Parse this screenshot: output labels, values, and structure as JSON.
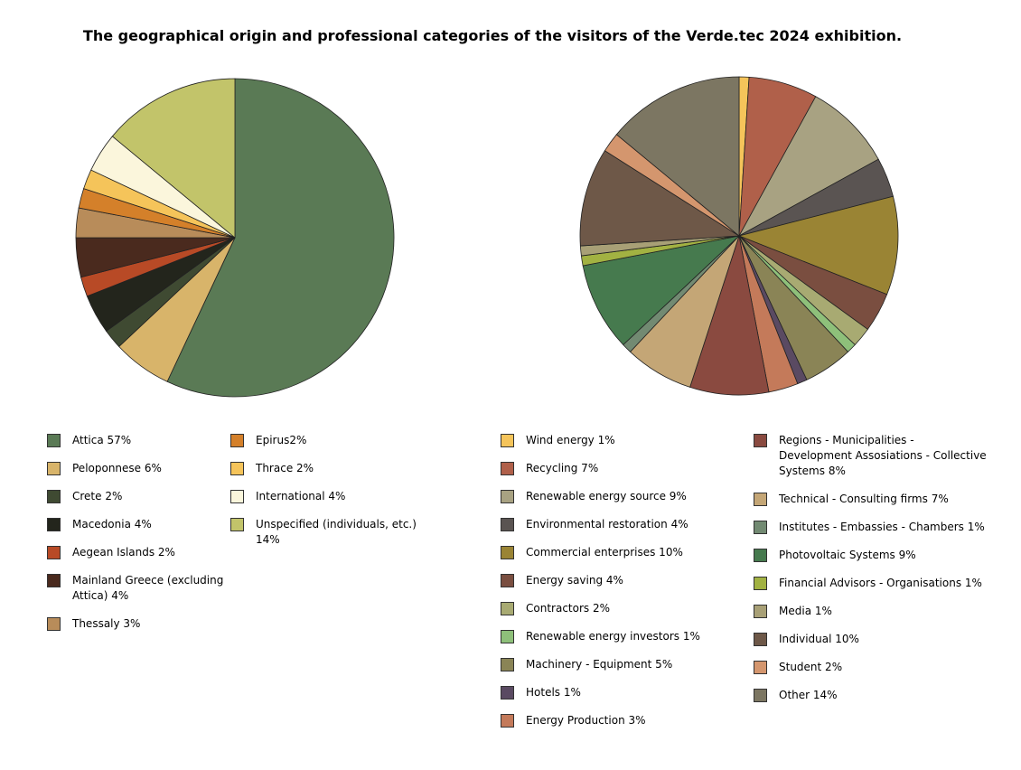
{
  "title": "The geographical origin and professional categories of the visitors of the Verde.tec 2024 exhibition.",
  "chart_data": [
    {
      "type": "pie",
      "categories": [
        "Attica 57%",
        "Peloponnese 6%",
        "Crete 2%",
        "Macedonia 4%",
        "Aegean Islands 2%",
        "Mainland Greece (excluding Attica) 4%",
        "Thessaly 3%",
        "Epirus2%",
        "Thrace 2%",
        "International 4%",
        "Unspecified (individuals, etc.) 14%"
      ],
      "values": [
        57,
        6,
        2,
        4,
        2,
        4,
        3,
        2,
        2,
        4,
        14
      ],
      "colors": [
        "#5a7a55",
        "#d8b46a",
        "#3f4a32",
        "#23251c",
        "#b84a26",
        "#4a2a1e",
        "#b88c5a",
        "#d4802a",
        "#f5c45a",
        "#fbf6dc",
        "#c2c46a"
      ]
    },
    {
      "type": "pie",
      "categories": [
        "Wind energy 1%",
        "Recycling 7%",
        "Renewable energy source 9%",
        "Environmental restoration 4%",
        "Commercial enterprises 10%",
        "Energy saving 4%",
        "Contractors 2%",
        "Renewable energy investors 1%",
        "Machinery - Equipment 5%",
        "Hotels 1%",
        "Energy Production 3%",
        "Regions - Municipalities - Development Assosiations - Collective Systems 8%",
        "Technical - Consulting firms 7%",
        "Institutes - Embassies - Chambers 1%",
        "Photovoltaic Systems 9%",
        "Financial Advisors - Organisations 1%",
        "Media 1%",
        "Individual 10%",
        "Student 2%",
        "Other 14%"
      ],
      "values": [
        1,
        7,
        9,
        4,
        10,
        4,
        2,
        1,
        5,
        1,
        3,
        8,
        7,
        1,
        9,
        1,
        1,
        10,
        2,
        14
      ],
      "colors": [
        "#f5c45a",
        "#b0604a",
        "#a8a282",
        "#5a5452",
        "#9a8434",
        "#7a4e40",
        "#a8aa72",
        "#8ec07a",
        "#8a8456",
        "#5a4a62",
        "#c47a5a",
        "#8a4a40",
        "#c4a676",
        "#728a72",
        "#467a4e",
        "#a2b242",
        "#a8a076",
        "#6e5848",
        "#d4966e",
        "#7c7662"
      ]
    }
  ]
}
